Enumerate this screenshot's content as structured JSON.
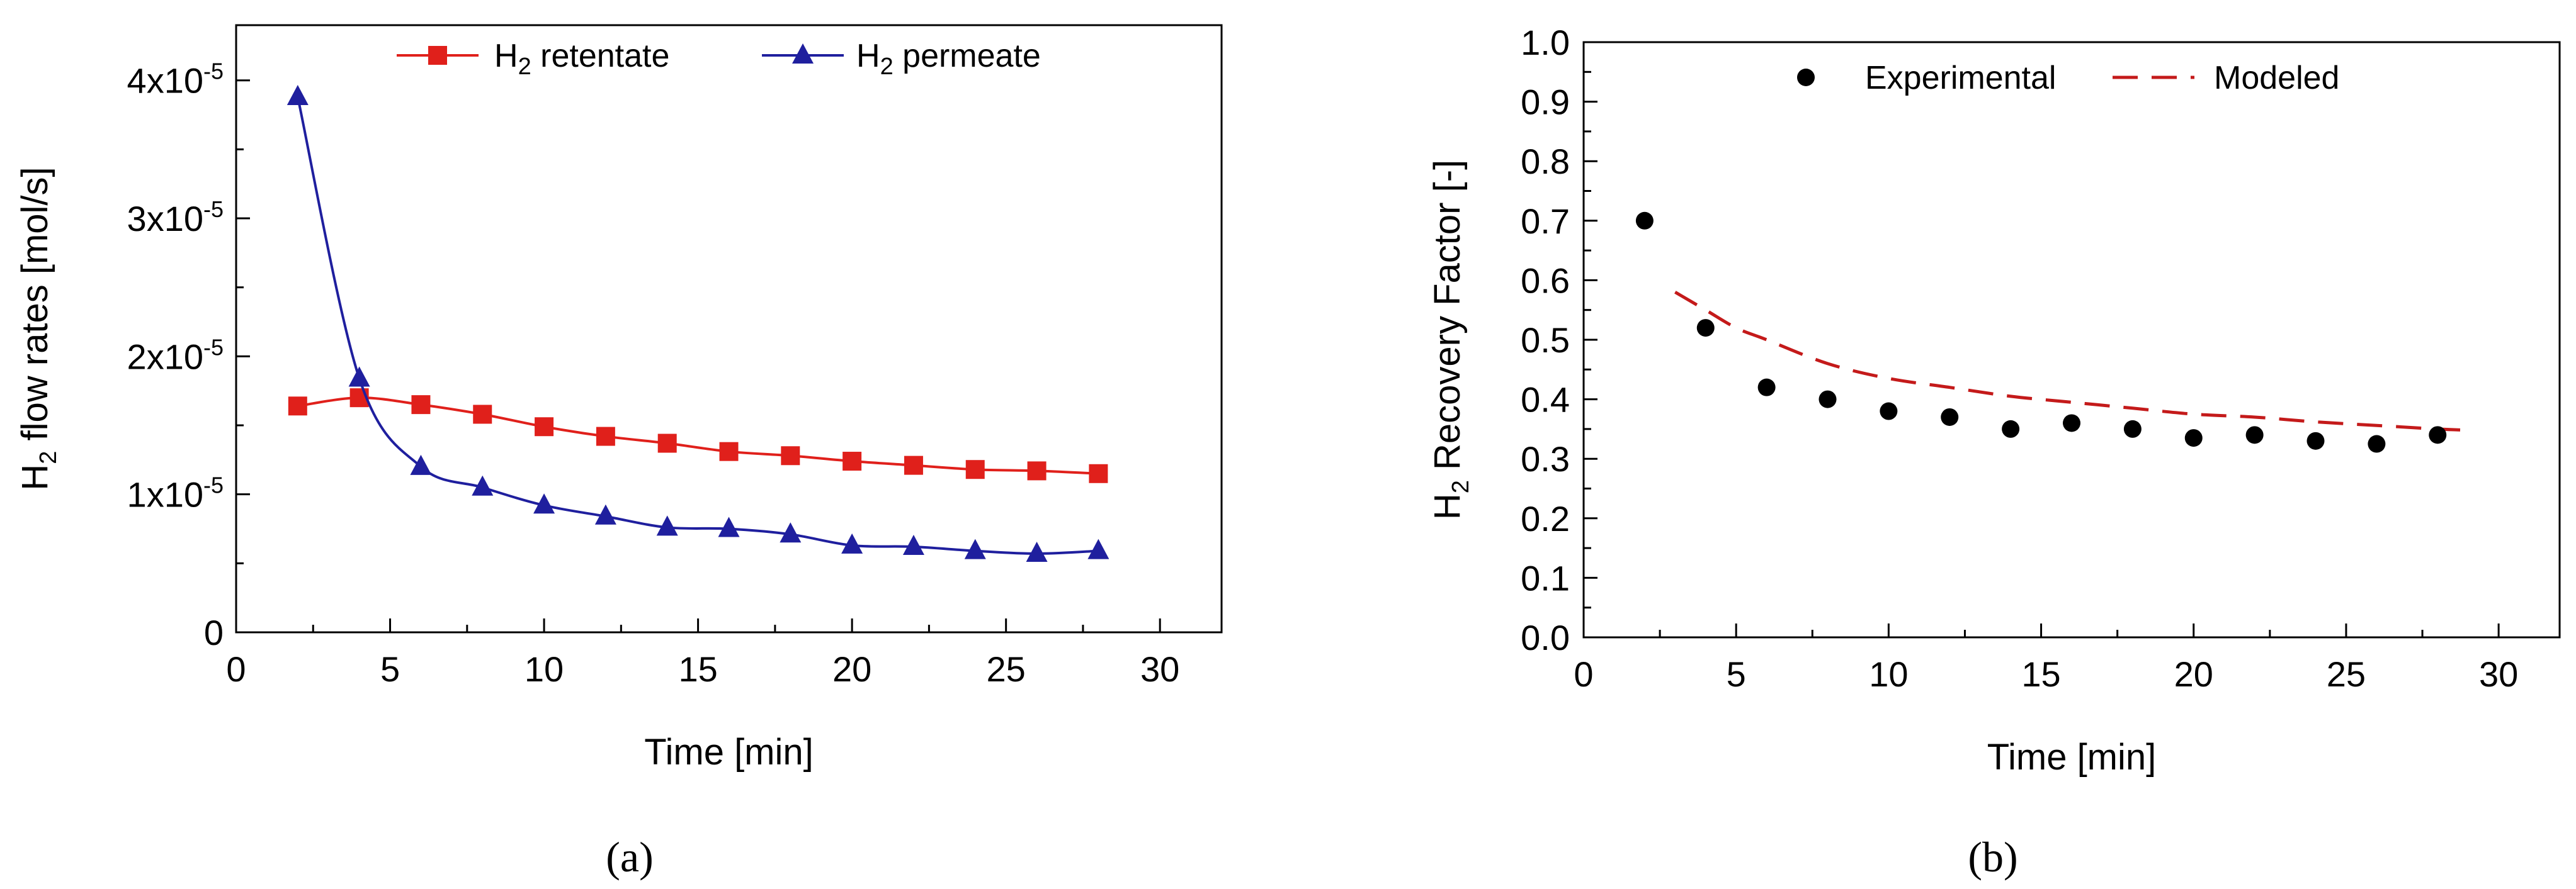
{
  "chart_data": [
    {
      "type": "line",
      "panel_label": "(a)",
      "xlabel": "Time [min]",
      "ylabel_main": "flow rates [mol/s]",
      "ylabel_prefix": "H",
      "ylabel_sub": "2",
      "xlim": [
        0,
        32
      ],
      "ylim": [
        0,
        4.4e-05
      ],
      "xticks": [
        0,
        5,
        10,
        15,
        20,
        25,
        30
      ],
      "yticks": [
        {
          "value": 0,
          "mantissa": "0",
          "exponent": ""
        },
        {
          "value": 1e-05,
          "mantissa": "1x10",
          "exponent": "-5"
        },
        {
          "value": 2e-05,
          "mantissa": "2x10",
          "exponent": "-5"
        },
        {
          "value": 3e-05,
          "mantissa": "3x10",
          "exponent": "-5"
        },
        {
          "value": 4e-05,
          "mantissa": "4x10",
          "exponent": "-5"
        }
      ],
      "legend_position": "top",
      "series": [
        {
          "name": "retentate",
          "legend_prefix": "H",
          "legend_sub": "2",
          "color": "#e0201b",
          "marker": "square",
          "x": [
            2,
            4,
            6,
            8,
            10,
            12,
            14,
            16,
            18,
            20,
            22,
            24,
            26,
            28
          ],
          "values": [
            1.64e-05,
            1.7e-05,
            1.65e-05,
            1.58e-05,
            1.49e-05,
            1.42e-05,
            1.37e-05,
            1.31e-05,
            1.28e-05,
            1.24e-05,
            1.21e-05,
            1.18e-05,
            1.17e-05,
            1.15e-05
          ]
        },
        {
          "name": "permeate",
          "legend_prefix": "H",
          "legend_sub": "2",
          "color": "#1f1f9e",
          "marker": "triangle",
          "x": [
            2,
            4,
            6,
            8,
            10,
            12,
            14,
            16,
            18,
            20,
            22,
            24,
            26,
            28
          ],
          "values": [
            3.88e-05,
            1.84e-05,
            1.2e-05,
            1.05e-05,
            9.2e-06,
            8.4e-06,
            7.6e-06,
            7.5e-06,
            7.1e-06,
            6.3e-06,
            6.2e-06,
            5.9e-06,
            5.7e-06,
            5.9e-06
          ]
        }
      ]
    },
    {
      "type": "scatter",
      "panel_label": "(b)",
      "xlabel": "Time [min]",
      "ylabel_main": "Recovery Factor [-]",
      "ylabel_prefix": "H",
      "ylabel_sub": "2",
      "xlim": [
        0,
        32
      ],
      "ylim": [
        0,
        1.0
      ],
      "xticks": [
        0,
        5,
        10,
        15,
        20,
        25,
        30
      ],
      "yticks": [
        "0.0",
        "0.1",
        "0.2",
        "0.3",
        "0.4",
        "0.5",
        "0.6",
        "0.7",
        "0.8",
        "0.9",
        "1.0"
      ],
      "legend_position": "top",
      "series": [
        {
          "name": "Experimental",
          "color": "#000000",
          "marker": "circle",
          "x": [
            2,
            4,
            6,
            8,
            10,
            12,
            14,
            16,
            18,
            20,
            22,
            24,
            26,
            28
          ],
          "values": [
            0.7,
            0.52,
            0.42,
            0.4,
            0.38,
            0.37,
            0.35,
            0.36,
            0.35,
            0.335,
            0.34,
            0.33,
            0.325,
            0.34
          ]
        },
        {
          "name": "Modeled",
          "color": "#c41a1a",
          "style": "dashed",
          "x": [
            3,
            4,
            5,
            6,
            8,
            10,
            12,
            14,
            16,
            18,
            20,
            22,
            24,
            26,
            28,
            29
          ],
          "values": [
            0.58,
            0.55,
            0.52,
            0.5,
            0.46,
            0.435,
            0.42,
            0.405,
            0.395,
            0.385,
            0.375,
            0.37,
            0.362,
            0.356,
            0.35,
            0.348
          ]
        }
      ]
    }
  ]
}
